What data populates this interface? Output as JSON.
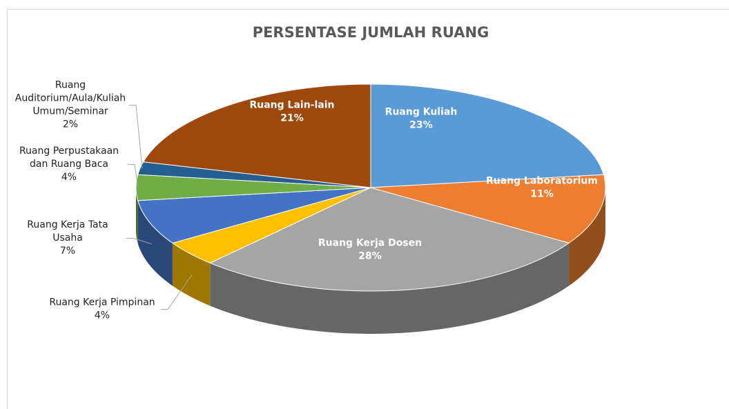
{
  "chart_data": {
    "type": "pie3d",
    "title": "PERSENTASE JUMLAH RUANG",
    "categories": [
      "Ruang Kuliah",
      "Ruang Laboratorium",
      "Ruang Kerja Dosen",
      "Ruang Kerja Pimpinan",
      "Ruang Kerja Tata Usaha",
      "Ruang Perpustakaan dan Ruang Baca",
      "Ruang Auditorium/Aula/Kuliah Umum/Seminar",
      "Ruang Lain-lain"
    ],
    "values": [
      23,
      11,
      28,
      4,
      7,
      4,
      2,
      21
    ],
    "value_labels": [
      "23%",
      "11%",
      "28%",
      "4%",
      "7%",
      "4%",
      "2%",
      "21%"
    ],
    "colors": [
      "#5b9bd5",
      "#ed7d31",
      "#a5a5a5",
      "#ffc000",
      "#4472c4",
      "#70ad47",
      "#255e91",
      "#9e480e"
    ]
  }
}
